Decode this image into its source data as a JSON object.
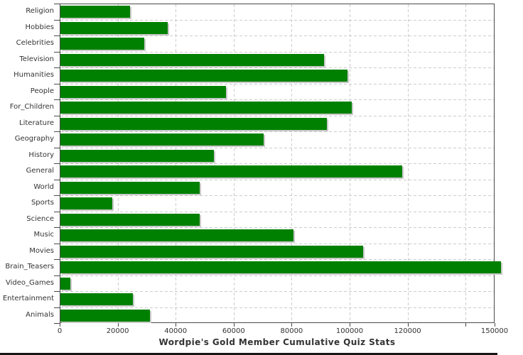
{
  "chart_data": {
    "type": "bar",
    "orientation": "horizontal",
    "title": "Wordpie's Gold Member Cumulative Quiz Stats",
    "categories": [
      "Religion",
      "Hobbies",
      "Celebrities",
      "Television",
      "Humanities",
      "People",
      "For_Children",
      "Literature",
      "Geography",
      "History",
      "General",
      "World",
      "Sports",
      "Science",
      "Music",
      "Movies",
      "Brain_Teasers",
      "Video_Games",
      "Entertainment",
      "Animals"
    ],
    "values": [
      24000,
      37000,
      29000,
      91000,
      99000,
      57000,
      100500,
      92000,
      70000,
      53000,
      118000,
      48000,
      18000,
      48000,
      80500,
      104500,
      152000,
      3500,
      25000,
      31000
    ],
    "xlabel": "",
    "ylabel": "",
    "xlim": [
      0,
      150000
    ],
    "x_ticks": [
      0,
      20000,
      40000,
      60000,
      80000,
      100000,
      120000,
      140000,
      150000
    ],
    "x_tick_labels": [
      "0",
      "20000",
      "40000",
      "60000",
      "80000",
      "100000",
      "120000",
      "",
      "150000"
    ],
    "grid": "dashed",
    "legend": "none",
    "bar_color": "#008000",
    "bar_shadow_color": "#c9c9c9",
    "grid_color": "#cccccc",
    "axis_color": "#4a4a4a",
    "text_color": "#333333",
    "background": "#ffffff"
  }
}
